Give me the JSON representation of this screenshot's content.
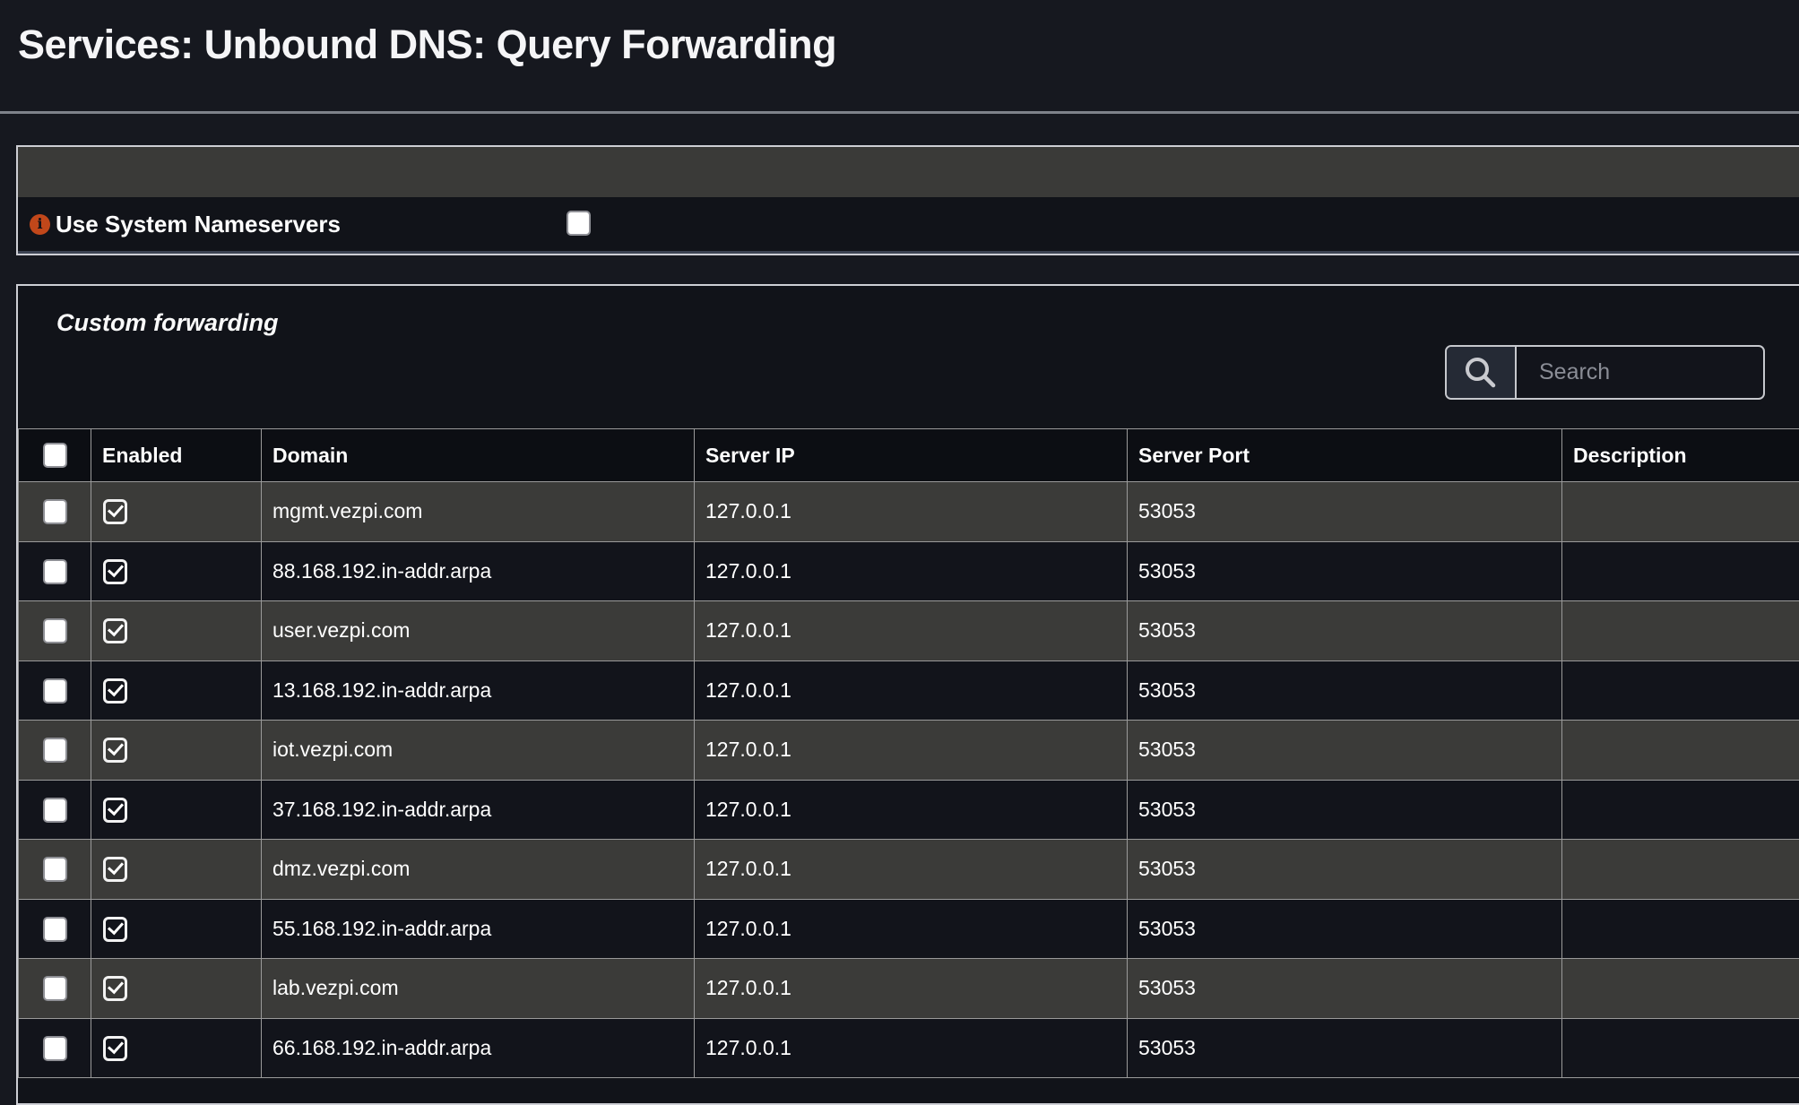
{
  "page": {
    "title": "Services: Unbound DNS: Query Forwarding"
  },
  "nameservers_form": {
    "label": "Use System Nameservers",
    "info_icon": "info-icon",
    "checkbox_checked": false
  },
  "custom_forwarding": {
    "heading": "Custom forwarding",
    "search": {
      "placeholder": "Search",
      "value": "",
      "icon": "search-icon"
    }
  },
  "table": {
    "headers": {
      "select": "",
      "enabled": "Enabled",
      "domain": "Domain",
      "server_ip": "Server IP",
      "server_port": "Server Port",
      "description": "Description"
    },
    "select_all_checked": false,
    "rows": [
      {
        "selected": false,
        "enabled": true,
        "domain": "mgmt.vezpi.com",
        "server_ip": "127.0.0.1",
        "server_port": "53053",
        "description": ""
      },
      {
        "selected": false,
        "enabled": true,
        "domain": "88.168.192.in-addr.arpa",
        "server_ip": "127.0.0.1",
        "server_port": "53053",
        "description": ""
      },
      {
        "selected": false,
        "enabled": true,
        "domain": "user.vezpi.com",
        "server_ip": "127.0.0.1",
        "server_port": "53053",
        "description": ""
      },
      {
        "selected": false,
        "enabled": true,
        "domain": "13.168.192.in-addr.arpa",
        "server_ip": "127.0.0.1",
        "server_port": "53053",
        "description": ""
      },
      {
        "selected": false,
        "enabled": true,
        "domain": "iot.vezpi.com",
        "server_ip": "127.0.0.1",
        "server_port": "53053",
        "description": ""
      },
      {
        "selected": false,
        "enabled": true,
        "domain": "37.168.192.in-addr.arpa",
        "server_ip": "127.0.0.1",
        "server_port": "53053",
        "description": ""
      },
      {
        "selected": false,
        "enabled": true,
        "domain": "dmz.vezpi.com",
        "server_ip": "127.0.0.1",
        "server_port": "53053",
        "description": ""
      },
      {
        "selected": false,
        "enabled": true,
        "domain": "55.168.192.in-addr.arpa",
        "server_ip": "127.0.0.1",
        "server_port": "53053",
        "description": ""
      },
      {
        "selected": false,
        "enabled": true,
        "domain": "lab.vezpi.com",
        "server_ip": "127.0.0.1",
        "server_port": "53053",
        "description": ""
      },
      {
        "selected": false,
        "enabled": true,
        "domain": "66.168.192.in-addr.arpa",
        "server_ip": "127.0.0.1",
        "server_port": "53053",
        "description": ""
      }
    ]
  },
  "colors": {
    "accent_info": "#c1471a",
    "panel_header": "#3a3a38",
    "row_alt": "#3b3b39",
    "row_dark": "#12141b",
    "cell_border": "#9a9a9a",
    "panel_border": "#cdced4",
    "page_bg": "#16181f"
  }
}
